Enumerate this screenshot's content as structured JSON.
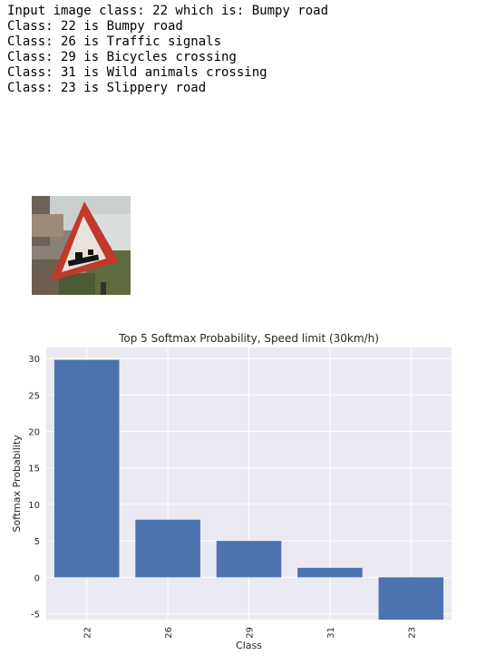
{
  "output_lines": [
    "Input image class: 22 which is: Bumpy road",
    "Class: 22 is Bumpy road",
    "Class: 26 is Traffic signals",
    "Class: 29 is Bicycles crossing",
    "Class: 31 is Wild animals crossing",
    "Class: 23 is Slippery road"
  ],
  "colors": {
    "bar": "#4c72b0",
    "plot_bg": "#eaeaf2",
    "grid": "#ffffff",
    "sign_red": "#c0392b"
  },
  "chart_data": {
    "type": "bar",
    "title": "Top 5 Softmax Probability, Speed limit (30km/h)",
    "xlabel": "Class",
    "ylabel": "Softmax Probability",
    "categories": [
      "22",
      "26",
      "29",
      "31",
      "23"
    ],
    "values": [
      29.8,
      7.9,
      5.0,
      1.3,
      -5.8
    ],
    "ylim": [
      -5.8,
      31.5
    ],
    "yticks": [
      -5,
      0,
      5,
      10,
      15,
      20,
      25,
      30
    ],
    "grid": true,
    "xtick_rotation": "vertical"
  }
}
